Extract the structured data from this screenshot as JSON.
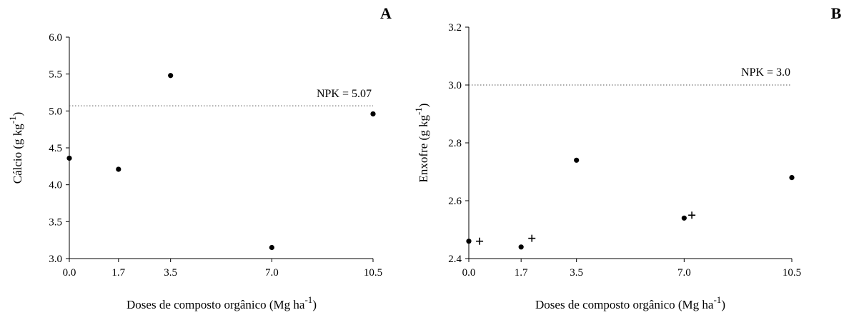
{
  "chart_data": [
    {
      "type": "scatter",
      "panel_label": "A",
      "xlabel_main": "Doses de composto orgânico (Mg ha",
      "xlabel_sup": "-1",
      "xlabel_end": ")",
      "ylabel_main": "Cálcio (g kg",
      "ylabel_sup": "-1",
      "ylabel_end": ")",
      "x_ticks": [
        "0.0",
        "1.7",
        "3.5",
        "7.0",
        "10.5"
      ],
      "y_ticks": [
        "3.0",
        "3.5",
        "4.0",
        "4.5",
        "5.0",
        "5.5",
        "6.0"
      ],
      "xlim": [
        0,
        10.5
      ],
      "ylim": [
        3.0,
        6.0
      ],
      "series": [
        {
          "marker": "dot",
          "x": [
            0.0,
            1.7,
            3.5,
            7.0,
            10.5
          ],
          "y": [
            4.36,
            4.21,
            5.48,
            3.15,
            4.96
          ]
        }
      ],
      "reference_line": {
        "value": 5.07,
        "label": "NPK = 5.07"
      }
    },
    {
      "type": "scatter",
      "panel_label": "B",
      "xlabel_main": "Doses de composto orgânico (Mg ha",
      "xlabel_sup": "-1",
      "xlabel_end": ")",
      "ylabel_main": "Enxofre (g kg",
      "ylabel_sup": "-1",
      "ylabel_end": ")",
      "x_ticks": [
        "0.0",
        "1.7",
        "3.5",
        "7.0",
        "10.5"
      ],
      "y_ticks": [
        "2.4",
        "2.6",
        "2.8",
        "3.0",
        "3.2"
      ],
      "xlim": [
        0,
        10.5
      ],
      "ylim": [
        2.4,
        3.2
      ],
      "series": [
        {
          "marker": "dot",
          "x": [
            0.0,
            1.7,
            3.5,
            7.0,
            10.5
          ],
          "y": [
            2.46,
            2.44,
            2.74,
            2.54,
            2.68
          ]
        },
        {
          "marker": "plus",
          "x": [
            0.35,
            2.05,
            7.25
          ],
          "y": [
            2.46,
            2.47,
            2.55
          ]
        }
      ],
      "reference_line": {
        "value": 3.0,
        "label": "NPK = 3.0"
      }
    }
  ]
}
